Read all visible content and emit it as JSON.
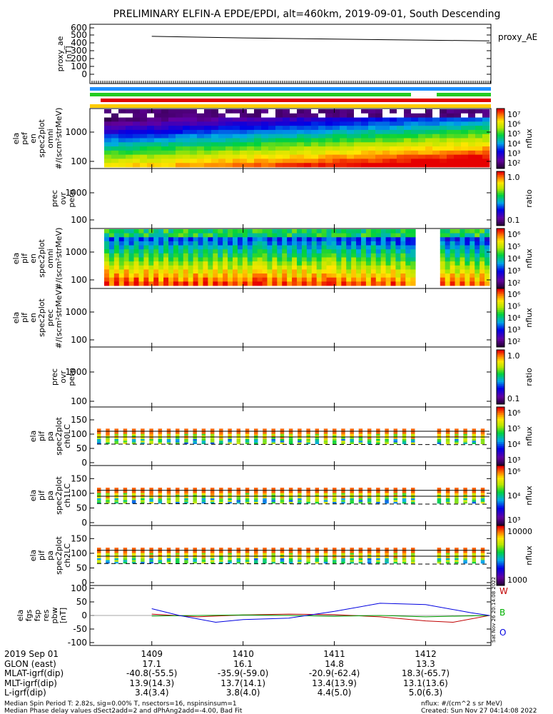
{
  "title": "PRELIMINARY ELFIN-A EPDE/EPDI, alt=460km, 2019-09-01, South Descending",
  "panels": {
    "ae": {
      "ylabel": [
        "proxy_ae",
        "[nT]"
      ],
      "yticks": [
        "600",
        "500",
        "400",
        "300",
        "200",
        "100",
        "0"
      ],
      "legend": "proxy_AE"
    },
    "pef": {
      "ylabel": [
        "ela",
        "pef",
        "en",
        "spec2plot",
        "omni",
        "#/(scm²strMeV)"
      ],
      "yticks": [
        "1000",
        "100"
      ],
      "cbar_label": "nflux",
      "cbar_ticks": [
        "10⁷",
        "10⁶",
        "10⁵",
        "10⁴",
        "10³",
        "10²"
      ]
    },
    "ratio_e": {
      "ylabel": [
        "prec",
        "ovr",
        "perp"
      ],
      "yticks": [
        "1000",
        "100"
      ],
      "cbar_label": "ratio",
      "cbar_ticks": [
        "1.0",
        "0.1"
      ]
    },
    "pif_omni": {
      "ylabel": [
        "ela",
        "pif",
        "en",
        "spec2plot",
        "omni",
        "#/(scm²strMeV)"
      ],
      "yticks": [
        "1000",
        "100"
      ],
      "cbar_label": "nflux",
      "cbar_ticks": [
        "10⁶",
        "10⁵",
        "10⁴",
        "10³",
        "10²"
      ]
    },
    "pif_prec": {
      "ylabel": [
        "ela",
        "pif",
        "en",
        "spec2plot",
        "prec",
        "#/(scm²strMeV)"
      ],
      "yticks": [
        "1000",
        "100"
      ],
      "cbar_label": "nflux",
      "cbar_ticks": [
        "10⁶",
        "10⁵",
        "10⁴",
        "10³",
        "10²"
      ]
    },
    "ratio_i": {
      "ylabel": [
        "prec",
        "ovr",
        "perp"
      ],
      "yticks": [
        "1000",
        "100"
      ],
      "cbar_label": "ratio",
      "cbar_ticks": [
        "1.0",
        "0.1"
      ]
    },
    "pa0": {
      "ylabel": [
        "ela",
        "pif",
        "pa",
        "spec2plot",
        "ch0LC"
      ],
      "yticks": [
        "150",
        "100",
        "50",
        "0"
      ],
      "cbar_label": "nflux",
      "cbar_ticks": [
        "10⁶",
        "10⁵",
        "10⁴",
        "10³"
      ]
    },
    "pa1": {
      "ylabel": [
        "ela",
        "pif",
        "pa",
        "spec2plot",
        "ch1LC"
      ],
      "yticks": [
        "150",
        "100",
        "50",
        "0"
      ],
      "cbar_label": "nflux",
      "cbar_ticks": [
        "10⁶",
        "10⁴",
        "10³"
      ]
    },
    "pa2": {
      "ylabel": [
        "ela",
        "pif",
        "pa",
        "spec2plot",
        "ch2LC"
      ],
      "yticks": [
        "150",
        "100",
        "50",
        "0"
      ],
      "cbar_label": "nflux",
      "cbar_ticks": [
        "10000",
        "1000"
      ]
    },
    "fgs": {
      "ylabel": [
        "ela",
        "fgs",
        "fsp",
        "res",
        "pbw",
        "[nT]"
      ],
      "yticks": [
        "100",
        "50",
        "0",
        "-50",
        "-100"
      ],
      "legend": [
        "W",
        "B",
        "O"
      ]
    }
  },
  "footer": {
    "row_labels": [
      "2019 Sep 01",
      "GLON (east)",
      "MLAT-igrf(dip)",
      "MLT-igrf(dip)",
      "L-igrf(dip)"
    ],
    "columns": [
      [
        "1409",
        "17.1",
        "-40.8(-55.5)",
        "13.9(14.3)",
        "3.4(3.4)"
      ],
      [
        "1410",
        "16.1",
        "-35.9(-59.0)",
        "13.7(14.1)",
        "3.8(4.0)"
      ],
      [
        "1411",
        "14.8",
        "-20.9(-62.4)",
        "13.4(13.9)",
        "4.4(5.0)"
      ],
      [
        "1412",
        "13.3",
        "18.3(-65.7)",
        "13.1(13.6)",
        "5.0(6.3)"
      ]
    ],
    "note1": "Median Spin Period T: 2.82s, sig=0.00% T, nsectors=16, nspinsinsum=1",
    "note2": "Median Phase delay values dSect2add=2 and dPhAng2add=-4.00, Bad Fit",
    "units": "nflux: #/(cm^2 s sr MeV)",
    "created": "Created: Sun Nov 27 04:14:08 2022",
    "side_stamp": "Sat Nov 26 20:14:08 2022"
  },
  "chart_data": {
    "type": "line",
    "title": "PRELIMINARY ELFIN-A EPDE/EPDI, alt=460km, 2019-09-01, South Descending",
    "x_ticks": [
      "1409",
      "1410",
      "1411",
      "1412"
    ],
    "series": [
      {
        "name": "proxy_AE",
        "panel": "ae",
        "x_min": [
          0,
          1,
          2,
          3,
          3.7
        ],
        "values": [
          490,
          470,
          455,
          440,
          432
        ]
      },
      {
        "name": "W",
        "panel": "fgs",
        "x_min": [
          0,
          0.5,
          1,
          1.5,
          2,
          2.5,
          3,
          3.3,
          3.7
        ],
        "values": [
          5,
          -5,
          2,
          5,
          3,
          -5,
          -20,
          -25,
          0
        ]
      },
      {
        "name": "B",
        "panel": "fgs",
        "x_min": [
          0,
          0.5,
          1,
          1.5,
          2,
          2.5,
          3,
          3.7
        ],
        "values": [
          -2,
          0,
          2,
          0,
          -3,
          0,
          -5,
          0
        ]
      },
      {
        "name": "O",
        "panel": "fgs",
        "x_min": [
          0,
          0.3,
          0.7,
          1,
          1.5,
          2,
          2.5,
          3,
          3.5,
          3.7
        ],
        "values": [
          25,
          0,
          -25,
          -15,
          -10,
          15,
          45,
          40,
          10,
          0
        ]
      }
    ],
    "dashed_level_deg": 65,
    "solid_levels_deg": [
      90,
      110
    ]
  }
}
